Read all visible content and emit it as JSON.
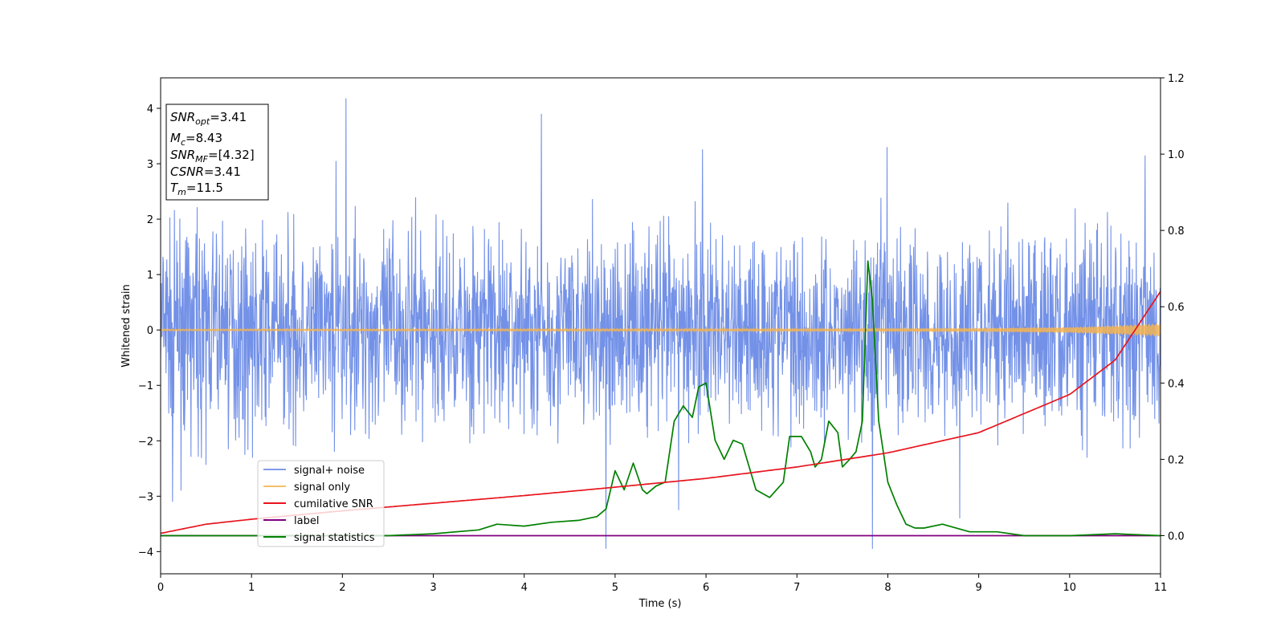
{
  "chart_data": {
    "type": "line",
    "title": "",
    "xlabel": "Time (s)",
    "ylabel": "Whitened strain",
    "xlim": [
      0,
      11
    ],
    "ylim": [
      -4.4,
      4.55
    ],
    "y2lim": [
      -0.1,
      1.2
    ],
    "x_ticks": [
      0,
      1,
      2,
      3,
      4,
      5,
      6,
      7,
      8,
      9,
      10,
      11
    ],
    "y_ticks": [
      -4,
      -3,
      -2,
      -1,
      0,
      1,
      2,
      3,
      4
    ],
    "y_tick_labels": [
      "−4",
      "−3",
      "−2",
      "−1",
      "0",
      "1",
      "2",
      "3",
      "4"
    ],
    "y2_ticks": [
      0.0,
      0.2,
      0.4,
      0.6,
      0.8,
      1.0,
      1.2
    ],
    "y2_tick_labels": [
      "0.0",
      "0.2",
      "0.4",
      "0.6",
      "0.8",
      "1.0",
      "1.2"
    ],
    "grid": false,
    "legend_position": "lower-left",
    "annotation": {
      "lines": [
        {
          "base": "SNR",
          "sub": "opt",
          "rest": "=3.41"
        },
        {
          "base": "M",
          "sub": "c",
          "rest": "=8.43"
        },
        {
          "base": "SNR",
          "sub": "MF",
          "rest": "=[4.32]"
        },
        {
          "base": "CSNR",
          "sub": "",
          "rest": "=3.41"
        },
        {
          "base": "T",
          "sub": "m",
          "rest": "=11.5"
        }
      ]
    },
    "series": [
      {
        "name": "signal+ noise",
        "axis": "left",
        "color": "#6b8be6",
        "kind": "noise",
        "mean": 0.0,
        "typical_range": [
          -2.2,
          2.2
        ],
        "max": 4.18,
        "min": -3.95,
        "spikes": [
          [
            2.04,
            4.18
          ],
          [
            4.19,
            3.9
          ],
          [
            1.93,
            3.05
          ],
          [
            5.96,
            3.26
          ],
          [
            7.99,
            3.3
          ],
          [
            10.83,
            3.15
          ],
          [
            4.9,
            -3.95
          ],
          [
            7.83,
            -3.95
          ],
          [
            8.79,
            -3.4
          ],
          [
            5.7,
            -3.25
          ],
          [
            0.13,
            -3.1
          ]
        ]
      },
      {
        "name": "signal only",
        "axis": "left",
        "color": "#f5b450",
        "kind": "chirp",
        "x": [
          0,
          5,
          9,
          10,
          10.5,
          11
        ],
        "amplitude": [
          0.01,
          0.015,
          0.03,
          0.05,
          0.08,
          0.12
        ]
      },
      {
        "name": "cumilative SNR",
        "axis": "right",
        "color": "#e8141e",
        "x": [
          0,
          0.5,
          1,
          2,
          3,
          4,
          5,
          6,
          7,
          8,
          9,
          10,
          10.5,
          11
        ],
        "values": [
          0.006,
          0.03,
          0.043,
          0.065,
          0.085,
          0.105,
          0.127,
          0.15,
          0.18,
          0.217,
          0.27,
          0.37,
          0.46,
          0.64
        ]
      },
      {
        "name": "label",
        "axis": "right",
        "color": "#800080",
        "x": [
          0,
          11
        ],
        "values": [
          0.0,
          0.0
        ]
      },
      {
        "name": "signal statistics",
        "axis": "right",
        "color": "#008000",
        "x": [
          0,
          2,
          2.5,
          3,
          3.5,
          3.7,
          4,
          4.3,
          4.6,
          4.8,
          4.9,
          5.0,
          5.1,
          5.2,
          5.3,
          5.35,
          5.45,
          5.55,
          5.65,
          5.75,
          5.85,
          5.92,
          6.0,
          6.1,
          6.2,
          6.3,
          6.4,
          6.45,
          6.55,
          6.7,
          6.85,
          6.92,
          7.05,
          7.1,
          7.15,
          7.2,
          7.27,
          7.35,
          7.45,
          7.5,
          7.58,
          7.65,
          7.72,
          7.78,
          7.83,
          7.9,
          8.0,
          8.1,
          8.2,
          8.3,
          8.4,
          8.6,
          8.9,
          9.2,
          9.5,
          10,
          10.5,
          11
        ],
        "values": [
          0.0,
          0.0,
          0.0,
          0.005,
          0.015,
          0.03,
          0.025,
          0.035,
          0.04,
          0.05,
          0.07,
          0.17,
          0.12,
          0.19,
          0.12,
          0.11,
          0.13,
          0.14,
          0.3,
          0.34,
          0.31,
          0.39,
          0.4,
          0.25,
          0.2,
          0.25,
          0.24,
          0.2,
          0.12,
          0.1,
          0.14,
          0.26,
          0.26,
          0.24,
          0.22,
          0.18,
          0.2,
          0.3,
          0.27,
          0.18,
          0.2,
          0.22,
          0.3,
          0.72,
          0.62,
          0.3,
          0.14,
          0.08,
          0.03,
          0.02,
          0.02,
          0.03,
          0.01,
          0.01,
          0.0,
          0.0,
          0.005,
          0.0
        ]
      }
    ]
  }
}
